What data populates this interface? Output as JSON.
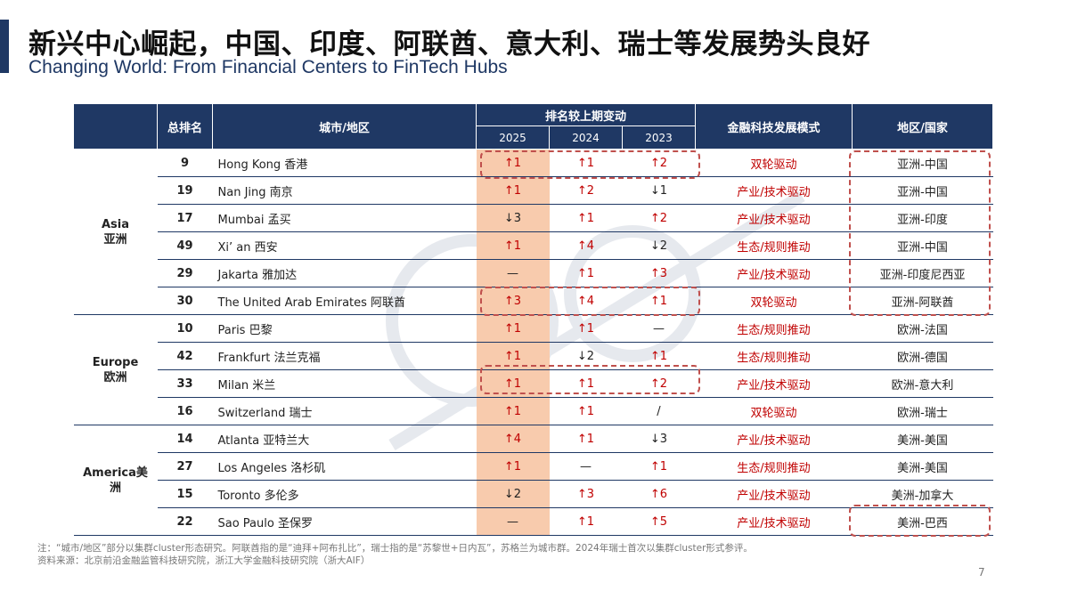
{
  "header": {
    "title": "新兴中心崛起，中国、印度、阿联酋、意大利、瑞士等发展势头良好",
    "subtitle": "Changing World: From Financial Centers to FinTech Hubs"
  },
  "table": {
    "headers": {
      "rank": "总排名",
      "city": "城市/地区",
      "change": "排名较上期变动",
      "y2025": "2025",
      "y2024": "2024",
      "y2023": "2023",
      "mode": "金融科技发展模式",
      "location": "地区/国家"
    },
    "regions": [
      {
        "line1": "Asia",
        "line2": "亚洲"
      },
      {
        "line1": "Europe",
        "line2": "欧洲"
      },
      {
        "line1": "America美",
        "line2": "洲"
      }
    ],
    "rows": [
      {
        "rank": "9",
        "city": "Hong Kong  香港",
        "y2025": "↑1",
        "y2024": "↑1",
        "y2023": "↑2",
        "mode": "双轮驱动",
        "location": "亚洲-中国"
      },
      {
        "rank": "19",
        "city": "Nan Jing 南京",
        "y2025": "↑1",
        "y2024": "↑2",
        "y2023": "↓1",
        "mode": "产业/技术驱动",
        "location": "亚洲-中国"
      },
      {
        "rank": "17",
        "city": "Mumbai  孟买",
        "y2025": "↓3",
        "y2024": "↑1",
        "y2023": "↑2",
        "mode": "产业/技术驱动",
        "location": "亚洲-印度"
      },
      {
        "rank": "49",
        "city": "Xi’ an 西安",
        "y2025": "↑1",
        "y2024": "↑4",
        "y2023": "↓2",
        "mode": "生态/规则推动",
        "location": "亚洲-中国"
      },
      {
        "rank": "29",
        "city": "Jakarta  雅加达",
        "y2025": "—",
        "y2024": "↑1",
        "y2023": "↑3",
        "mode": "产业/技术驱动",
        "location": "亚洲-印度尼西亚"
      },
      {
        "rank": "30",
        "city": "The United Arab Emirates 阿联酋",
        "y2025": "↑3",
        "y2024": "↑4",
        "y2023": "↑1",
        "mode": "双轮驱动",
        "location": "亚洲-阿联酋"
      },
      {
        "rank": "10",
        "city": "Paris 巴黎",
        "y2025": "↑1",
        "y2024": "↑1",
        "y2023": "—",
        "mode": "生态/规则推动",
        "location": "欧洲-法国"
      },
      {
        "rank": "42",
        "city": "Frankfurt 法兰克福",
        "y2025": "↑1",
        "y2024": "↓2",
        "y2023": "↑1",
        "mode": "生态/规则推动",
        "location": "欧洲-德国"
      },
      {
        "rank": "33",
        "city": "Milan 米兰",
        "y2025": "↑1",
        "y2024": "↑1",
        "y2023": "↑2",
        "mode": "产业/技术驱动",
        "location": "欧洲-意大利"
      },
      {
        "rank": "16",
        "city": "Switzerland 瑞士",
        "y2025": "↑1",
        "y2024": "↑1",
        "y2023": "/",
        "mode": "双轮驱动",
        "location": "欧洲-瑞士"
      },
      {
        "rank": "14",
        "city": "Atlanta 亚特兰大",
        "y2025": "↑4",
        "y2024": "↑1",
        "y2023": "↓3",
        "mode": "产业/技术驱动",
        "location": "美洲-美国"
      },
      {
        "rank": "27",
        "city": "Los Angeles 洛杉矶",
        "y2025": "↑1",
        "y2024": "—",
        "y2023": "↑1",
        "mode": "生态/规则推动",
        "location": "美洲-美国"
      },
      {
        "rank": "15",
        "city": "Toronto 多伦多",
        "y2025": "↓2",
        "y2024": "↑3",
        "y2023": "↑6",
        "mode": "产业/技术驱动",
        "location": "美洲-加拿大"
      },
      {
        "rank": "22",
        "city": "Sao Paulo 圣保罗",
        "y2025": "—",
        "y2024": "↑1",
        "y2023": "↑5",
        "mode": "产业/技术驱动",
        "location": "美洲-巴西"
      }
    ]
  },
  "notes": {
    "note1": "注：“城市/地区”部分以集群cluster形态研究。阿联酋指的是“迪拜+阿布扎比”，瑞士指的是“苏黎世+日内瓦”，苏格兰为城市群。2024年瑞士首次以集群cluster形式参评。",
    "source": "资料来源：北京前沿金融监管科技研究院，浙江大学金融科技研究院（浙大AIF）"
  },
  "page_number": "7",
  "colors": {
    "navy": "#1f3864",
    "highlight": "#f8cbad",
    "accent_red": "#c00000",
    "dash": "#c0504d"
  }
}
